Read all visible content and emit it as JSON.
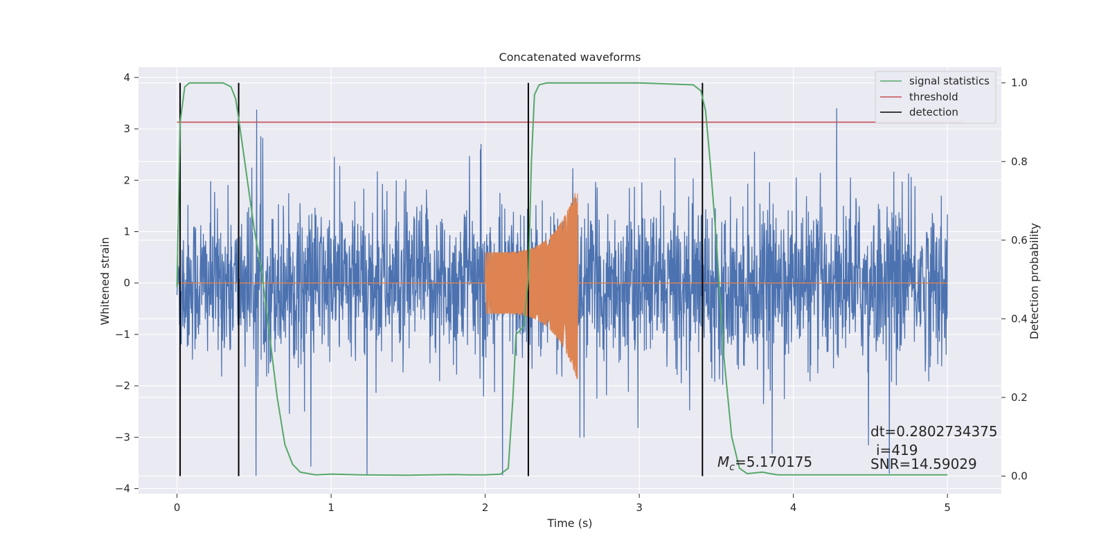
{
  "chart_data": {
    "type": "line",
    "title": "Concatenated waveforms",
    "xlabel": "Time (s)",
    "ylabel_left": "Whitened strain",
    "ylabel_right": "Detection probability",
    "xlim": [
      -0.25,
      5.35
    ],
    "ylim_left": [
      -4.1,
      4.2
    ],
    "ylim_right": [
      -0.045,
      1.04
    ],
    "x_ticks": [
      "0",
      "1",
      "2",
      "3",
      "4",
      "5"
    ],
    "y_ticks_left": [
      "4",
      "3",
      "2",
      "1",
      "0",
      "−1",
      "−2",
      "−3",
      "−4"
    ],
    "y_ticks_right": [
      "1.0",
      "0.8",
      "0.6",
      "0.4",
      "0.2",
      "0.0"
    ],
    "grid": true,
    "legend_position": "top-right",
    "colors": {
      "strain": "#4c72b0",
      "template": "#dd8452",
      "statistics": "#55a868",
      "threshold": "#c44e52",
      "detection": "#000000",
      "background": "#eaeaf2",
      "grid": "#ffffff"
    },
    "series": [
      {
        "name": "",
        "key": "whitened_strain",
        "description_x_range": [
          0,
          5
        ],
        "typical_amplitude": 1.0,
        "peak_max": 3.4,
        "peak_min": -3.7
      },
      {
        "name": "",
        "key": "template_waveform",
        "x_start": 2.0,
        "x_end": 2.6,
        "amplitude_start": 0.6,
        "amplitude_peak": 1.9,
        "amplitude_peak_min": -2.15
      },
      {
        "name": "signal statistics",
        "key": "signal_statistics",
        "axis": "right",
        "x": [
          0.0,
          0.02,
          0.05,
          0.08,
          0.15,
          0.3,
          0.35,
          0.38,
          0.4,
          0.45,
          0.5,
          0.55,
          0.6,
          0.65,
          0.7,
          0.75,
          0.8,
          0.9,
          1.0,
          1.2,
          1.5,
          1.8,
          1.9,
          2.0,
          2.1,
          2.15,
          2.18,
          2.2,
          2.25,
          2.28,
          2.3,
          2.32,
          2.35,
          2.4,
          2.5,
          3.0,
          3.35,
          3.4,
          3.43,
          3.46,
          3.5,
          3.55,
          3.6,
          3.65,
          3.7,
          3.75,
          3.8,
          3.85,
          3.9,
          4.0,
          4.5,
          5.0
        ],
        "y": [
          0.48,
          0.9,
          0.99,
          1.0,
          1.0,
          1.0,
          0.99,
          0.96,
          0.91,
          0.77,
          0.63,
          0.52,
          0.36,
          0.2,
          0.08,
          0.03,
          0.01,
          0.003,
          0.005,
          0.003,
          0.002,
          0.004,
          0.003,
          0.003,
          0.005,
          0.02,
          0.2,
          0.36,
          0.38,
          0.5,
          0.8,
          0.97,
          0.995,
          1.0,
          1.0,
          1.0,
          0.995,
          0.98,
          0.93,
          0.8,
          0.6,
          0.3,
          0.1,
          0.02,
          0.006,
          0.008,
          0.01,
          0.006,
          0.003,
          0.003,
          0.003,
          0.003
        ]
      },
      {
        "name": "threshold",
        "key": "threshold",
        "axis": "right",
        "x": [
          0.0,
          5.1
        ],
        "y": [
          0.9,
          0.9
        ]
      },
      {
        "name": "detection",
        "key": "detection",
        "axis": "right",
        "x_positions": [
          0.02,
          0.4,
          2.28,
          3.41
        ],
        "y_range": [
          0.0,
          1.0
        ]
      }
    ],
    "annotations": {
      "mc": "=5.170175",
      "mc_symbol": "M",
      "mc_sub": "c",
      "dt": "dt=0.2802734375",
      "i": "i=419",
      "snr": "SNR=14.59029"
    }
  }
}
